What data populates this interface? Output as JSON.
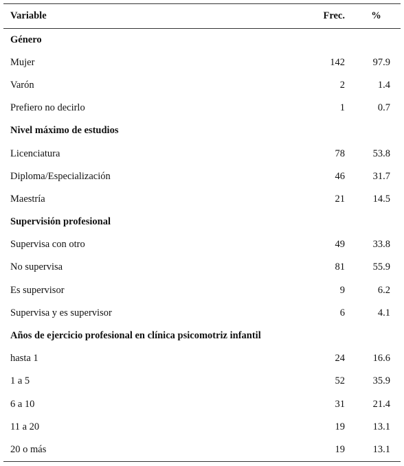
{
  "table": {
    "header": [
      "Variable",
      "Frec.",
      "%"
    ],
    "rows": [
      [
        "Género"
      ],
      [
        "Mujer",
        142,
        97.9
      ],
      [
        "Varón",
        2,
        1.4
      ],
      [
        "Prefiero no decirlo",
        1,
        0.7
      ],
      [
        "Nivel máximo de estudios"
      ],
      [
        "Licenciatura",
        78,
        53.8
      ],
      [
        "Diploma/Especialización",
        46,
        31.7
      ],
      [
        "Maestría",
        21,
        14.5
      ],
      [
        "Supervisión profesional"
      ],
      [
        "Supervisa con otro",
        49,
        33.8
      ],
      [
        "No supervisa",
        81,
        55.9
      ],
      [
        "Es supervisor",
        9,
        6.2
      ],
      [
        "Supervisa y es supervisor",
        6,
        4.1
      ],
      [
        "Años de ejercicio profesional en clínica psicomotriz infantil"
      ],
      [
        "hasta 1",
        24,
        16.6
      ],
      [
        "1 a 5",
        52,
        35.9
      ],
      [
        "6 a 10",
        31,
        21.4
      ],
      [
        "11 a 20",
        19,
        13.1
      ],
      [
        "20 o más",
        19,
        13.1
      ]
    ]
  }
}
